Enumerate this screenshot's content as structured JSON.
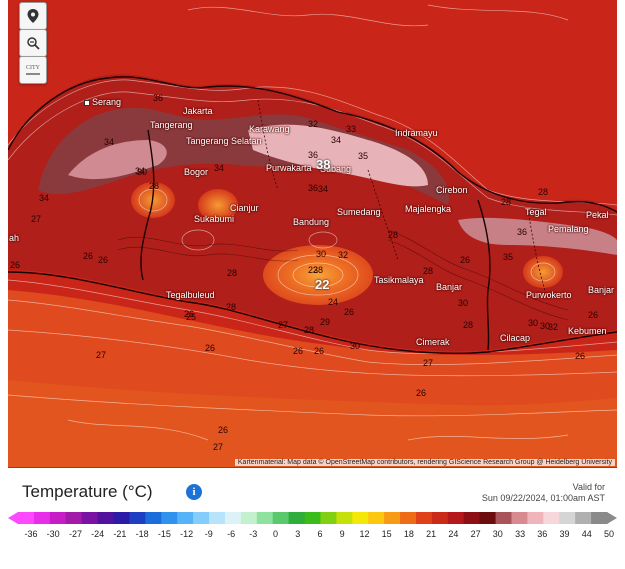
{
  "map": {
    "controls": [
      {
        "name": "locate-button",
        "icon": "location-pin-icon"
      },
      {
        "name": "zoom-out-button",
        "icon": "zoom-out-icon"
      },
      {
        "name": "city-toggle-button",
        "icon": "city-label-icon",
        "label": "CITY"
      }
    ],
    "attribution": "Kartenmaterial: Map data © OpenStreetMap contributors, rendering GIScience Research Group @ Heidelberg University",
    "cities": [
      {
        "id": "serang",
        "name": "Serang"
      },
      {
        "id": "jakarta",
        "name": "Jakarta"
      },
      {
        "id": "tangerang",
        "name": "Tangerang"
      },
      {
        "id": "tangerang-selatan",
        "name": "Tangerang Selatan"
      },
      {
        "id": "karawang",
        "name": "Karawang"
      },
      {
        "id": "indramayu",
        "name": "Indramayu"
      },
      {
        "id": "purwakarta",
        "name": "Purwakarta"
      },
      {
        "id": "subang",
        "name": "Subang"
      },
      {
        "id": "bogor",
        "name": "Bogor"
      },
      {
        "id": "cianjur",
        "name": "Cianjur"
      },
      {
        "id": "sukabumi",
        "name": "Sukabumi"
      },
      {
        "id": "bandung",
        "name": "Bandung"
      },
      {
        "id": "sumedang",
        "name": "Sumedang"
      },
      {
        "id": "majalengka",
        "name": "Majalengka"
      },
      {
        "id": "cirebon",
        "name": "Cirebon"
      },
      {
        "id": "tegal",
        "name": "Tegal"
      },
      {
        "id": "pemalang",
        "name": "Pemalang"
      },
      {
        "id": "pekalongan",
        "name": "Pekal"
      },
      {
        "id": "tasikmalaya",
        "name": "Tasikmalaya"
      },
      {
        "id": "banjar",
        "name": "Banjar"
      },
      {
        "id": "purwokerto",
        "name": "Purwokerto"
      },
      {
        "id": "banjarnegara",
        "name": "Banjar"
      },
      {
        "id": "tegalbuleud",
        "name": "Tegalbuleud"
      },
      {
        "id": "cimerak",
        "name": "Cimerak"
      },
      {
        "id": "cilacap",
        "name": "Cilacap"
      },
      {
        "id": "kebumen",
        "name": "Kebumen"
      },
      {
        "id": "edge-west",
        "name": "ah"
      }
    ],
    "isotherm_labels": [
      "36",
      "32",
      "34",
      "33",
      "35",
      "34",
      "36",
      "34",
      "38",
      "30",
      "28",
      "26",
      "28",
      "28",
      "34",
      "27",
      "26",
      "26",
      "30",
      "32",
      "36",
      "28",
      "23",
      "22",
      "24",
      "26",
      "27",
      "28",
      "29",
      "30",
      "26",
      "27",
      "28",
      "26",
      "26",
      "26",
      "30",
      "27",
      "35",
      "26",
      "28",
      "30",
      "28",
      "30",
      "32",
      "26",
      "26",
      "28",
      "28",
      "26",
      "27",
      "34",
      "36",
      "26",
      "34",
      "25"
    ]
  },
  "legend": {
    "title": "Temperature (°C)",
    "info_icon": "info-icon",
    "valid_for": "Valid for",
    "valid_time": "Sun 09/22/2024, 01:00am AST",
    "ticks": [
      "-36",
      "-30",
      "-27",
      "-24",
      "-21",
      "-18",
      "-15",
      "-12",
      "-9",
      "-6",
      "-3",
      "0",
      "3",
      "6",
      "9",
      "12",
      "15",
      "18",
      "21",
      "24",
      "27",
      "30",
      "33",
      "36",
      "39",
      "44",
      "50"
    ],
    "colors": [
      "#ff49ff",
      "#e82ee8",
      "#c61dc6",
      "#a11aa8",
      "#7a12a3",
      "#53129e",
      "#2b1ba8",
      "#1d3fc4",
      "#1c6ddc",
      "#2f93ee",
      "#56b3f7",
      "#84cdfb",
      "#b7e3fb",
      "#ddf2f7",
      "#c3f0cd",
      "#8fe1a0",
      "#59c96c",
      "#2fae3c",
      "#3cbc1a",
      "#82d012",
      "#c4e10a",
      "#f4e808",
      "#fbc710",
      "#f79a15",
      "#ef6c17",
      "#e0411a",
      "#cc2a18",
      "#b5181a",
      "#8d0e13",
      "#6d0c0e",
      "#a85458",
      "#d88a90",
      "#f0b5bb",
      "#f6d8da",
      "#d5d5d5",
      "#b0b0b0",
      "#8a8a8a"
    ]
  }
}
